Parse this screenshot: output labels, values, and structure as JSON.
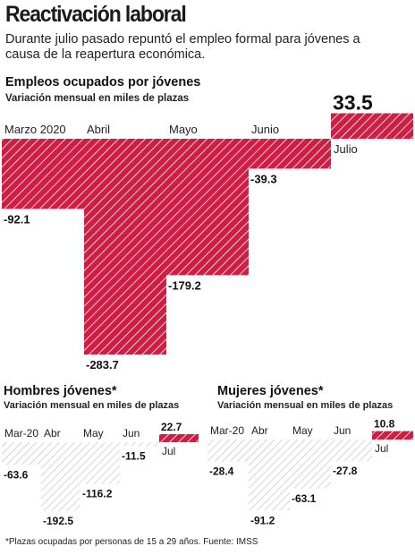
{
  "header": {
    "title": "Reactivación laboral",
    "subtitle": "Durante julio pasado repuntó el empleo formal para jóvenes a causa de la reapertura económica."
  },
  "colors": {
    "negative": "#d11d43",
    "positive": "#d11d43",
    "light_negative": "#cccccc"
  },
  "footnote": "*Plazas ocupadas por personas de 15 a 29 años. Fuente: IMSS",
  "chart_data": [
    {
      "type": "bar",
      "title": "Empleos ocupados por jóvenes",
      "subtitle": "Variación mensual en miles de plazas",
      "categories": [
        "Marzo 2020",
        "Abril",
        "Mayo",
        "Junio",
        "Julio"
      ],
      "values": [
        -92.1,
        -283.7,
        -179.2,
        -39.3,
        33.5
      ],
      "value_labels": [
        "-92.1",
        "-283.7",
        "-179.2",
        "-39.3",
        "33.5"
      ]
    },
    {
      "type": "bar",
      "title": "Hombres jóvenes*",
      "subtitle": "Variación mensual en miles de plazas",
      "categories": [
        "Mar-20",
        "Abr",
        "May",
        "Jun",
        "Jul"
      ],
      "values": [
        -63.6,
        -192.5,
        -116.2,
        -11.5,
        22.7
      ],
      "value_labels": [
        "-63.6",
        "-192.5",
        "-116.2",
        "-11.5",
        "22.7"
      ]
    },
    {
      "type": "bar",
      "title": "Mujeres jóvenes*",
      "subtitle": "Variación mensual en miles de plazas",
      "categories": [
        "Mar-20",
        "Abr",
        "May",
        "Jun",
        "Jul"
      ],
      "values": [
        -28.4,
        -91.2,
        -63.1,
        -27.8,
        10.8
      ],
      "value_labels": [
        "-28.4",
        "-91.2",
        "-63.1",
        "-27.8",
        "10.8"
      ]
    }
  ]
}
